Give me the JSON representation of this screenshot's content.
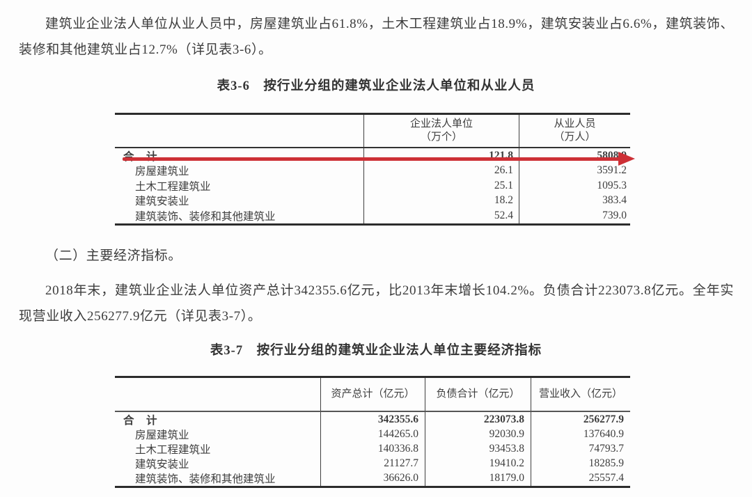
{
  "colors": {
    "background": "#fdfdfd",
    "text": "#3c3c3c",
    "table_border": "#2c2c2c",
    "arrow_red": "#cd3036"
  },
  "intro_paragraph": "建筑业企业法人单位从业人员中，房屋建筑业占61.8%，土木工程建筑业占18.9%，建筑安装业占6.6%，建筑装饰、装修和其他建筑业占12.7%（详见表3-6）。",
  "section_heading": "（二）主要经济指标。",
  "body_paragraph": "2018年末，建筑业企业法人单位资产总计342355.6亿元，比2013年末增长104.2%。负债合计223073.8亿元。全年实现营业收入256277.9亿元（详见表3-7）。",
  "annotation": {
    "type": "red-arrow",
    "note": "hand-drawn red arrow pointing right across the total row of table 3-6"
  },
  "table36": {
    "title": "表3-6　按行业分组的建筑业企业法人单位和从业人员",
    "col_headers": [
      {
        "line1": "企业法人单位",
        "line2": "（万个）"
      },
      {
        "line1": "从业人员",
        "line2": "（万人）"
      }
    ],
    "rows": [
      {
        "label": "合　计",
        "units": "121.8",
        "employees": "5808.9"
      },
      {
        "label": "房屋建筑业",
        "units": "26.1",
        "employees": "3591.2"
      },
      {
        "label": "土木工程建筑业",
        "units": "25.1",
        "employees": "1095.3"
      },
      {
        "label": "建筑安装业",
        "units": "18.2",
        "employees": "383.4"
      },
      {
        "label": "建筑装饰、装修和其他建筑业",
        "units": "52.4",
        "employees": "739.0"
      }
    ]
  },
  "table37": {
    "title": "表3-7　按行业分组的建筑业企业法人单位主要经济指标",
    "col_headers": [
      "资产总计（亿元）",
      "负债合计（亿元）",
      "营业收入（亿元）"
    ],
    "rows": [
      {
        "label": "合　计",
        "assets": "342355.6",
        "liabilities": "223073.8",
        "revenue": "256277.9"
      },
      {
        "label": "房屋建筑业",
        "assets": "144265.0",
        "liabilities": "92030.9",
        "revenue": "137640.9"
      },
      {
        "label": "土木工程建筑业",
        "assets": "140336.8",
        "liabilities": "93453.8",
        "revenue": "74793.7"
      },
      {
        "label": "建筑安装业",
        "assets": "21127.7",
        "liabilities": "19410.2",
        "revenue": "18285.9"
      },
      {
        "label": "建筑装饰、装修和其他建筑业",
        "assets": "36626.0",
        "liabilities": "18179.0",
        "revenue": "25557.4"
      }
    ]
  }
}
